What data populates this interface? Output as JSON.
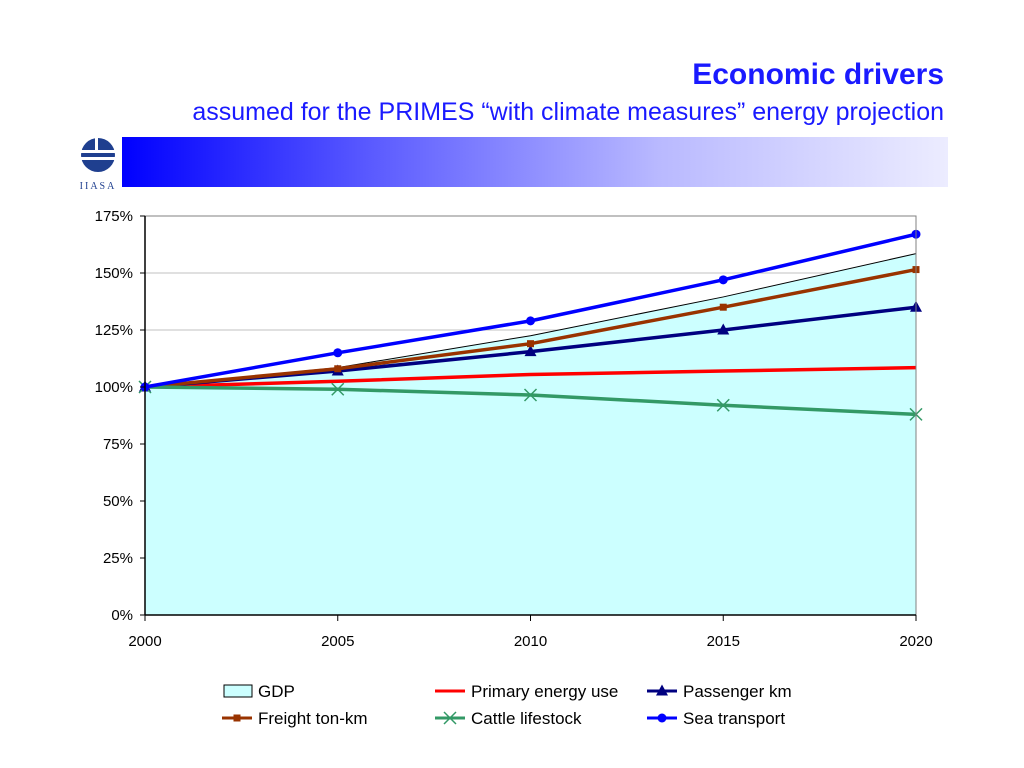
{
  "header": {
    "title": "Economic drivers",
    "subtitle": "assumed for the PRIMES “with climate measures” energy projection",
    "logo_text": "IIASA"
  },
  "colors": {
    "accent": "#1a1aff",
    "banner_start": "#0000ff",
    "banner_end": "#ececff"
  },
  "chart_data": {
    "type": "line",
    "x": [
      2000,
      2005,
      2010,
      2015,
      2020
    ],
    "x_tick_labels": [
      "2000",
      "2005",
      "2010",
      "2015",
      "2020"
    ],
    "y_tick_labels": [
      "0%",
      "25%",
      "50%",
      "75%",
      "100%",
      "125%",
      "150%",
      "175%"
    ],
    "y_ticks": [
      0,
      25,
      50,
      75,
      100,
      125,
      150,
      175
    ],
    "ylim": [
      0,
      175
    ],
    "xlim": [
      2000,
      2020
    ],
    "grid": "horizontal",
    "legend_position": "bottom",
    "series": [
      {
        "name": "GDP",
        "kind": "area",
        "color": "#ccffff",
        "stroke": "#000000",
        "marker": "none",
        "values": [
          100,
          108.5,
          122.5,
          139.5,
          158.5
        ]
      },
      {
        "name": "Primary energy use",
        "kind": "line",
        "color": "#ff0000",
        "marker": "none",
        "values": [
          100,
          102.5,
          105.5,
          107,
          108.5
        ]
      },
      {
        "name": "Passenger km",
        "kind": "line",
        "color": "#000080",
        "marker": "triangle",
        "values": [
          100,
          107,
          115.5,
          125,
          135
        ]
      },
      {
        "name": "Freight ton-km",
        "kind": "line",
        "color": "#993300",
        "marker": "square",
        "values": [
          100,
          108,
          119,
          135,
          151.5
        ]
      },
      {
        "name": "Cattle lifestock",
        "kind": "line",
        "color": "#339966",
        "marker": "x",
        "values": [
          100,
          99,
          96.5,
          92,
          88
        ]
      },
      {
        "name": "Sea transport",
        "kind": "line",
        "color": "#0000ff",
        "marker": "circle",
        "values": [
          100,
          115,
          129,
          147,
          167
        ]
      }
    ]
  }
}
